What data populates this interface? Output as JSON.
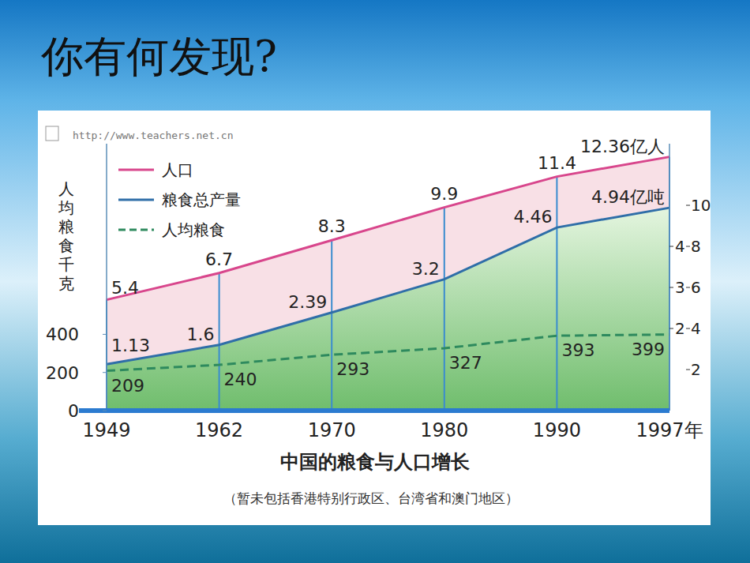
{
  "heading": "你有何发现?",
  "chart_data": {
    "type": "line",
    "title": "中国的粮食与人口增长",
    "subtitle": "（暂未包括香港特别行政区、台湾省和澳门地区）",
    "source": "http://www.teachers.net.cn",
    "y_label": "人均粮食千克",
    "categories": [
      "1949",
      "1962",
      "1970",
      "1980",
      "1990",
      "1997年"
    ],
    "ylim": [
      0,
      1400
    ],
    "yticks": [
      0,
      200,
      400
    ],
    "y2lim": [
      0,
      13
    ],
    "y2ticks": [
      2,
      4,
      6,
      8,
      10
    ],
    "y3lim": [
      0,
      6.5
    ],
    "y3ticks": [
      2,
      3,
      4
    ],
    "legend": "upper left",
    "data_labels": true,
    "series": [
      {
        "name": "人口",
        "color": "#d8468c",
        "axis": "y2",
        "type": "area",
        "values": [
          5.4,
          6.7,
          8.3,
          9.9,
          11.4,
          12.36
        ],
        "value_labels": [
          "5.4",
          "6.7",
          "8.3",
          "9.9",
          "11.4",
          "12.36亿人"
        ]
      },
      {
        "name": "粮食总产量",
        "color": "#2f6ea8",
        "axis": "y3",
        "type": "area",
        "values": [
          1.13,
          1.6,
          2.39,
          3.2,
          4.46,
          4.94
        ],
        "value_labels": [
          "1.13",
          "1.6",
          "2.39",
          "3.2",
          "4.46",
          "4.94亿吨"
        ]
      },
      {
        "name": "人均粮食",
        "color": "#2e8a5e",
        "type": "line",
        "line_style": "dashed",
        "values": [
          209,
          240,
          293,
          327,
          393,
          399
        ]
      }
    ]
  }
}
